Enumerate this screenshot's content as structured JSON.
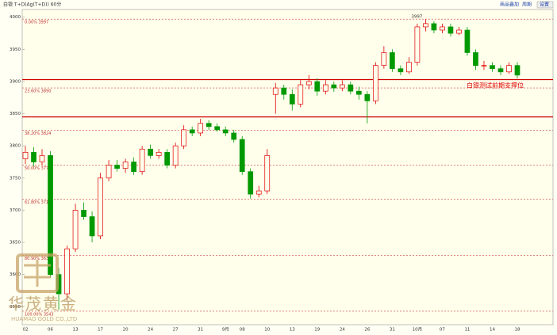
{
  "chart_data": {
    "type": "candlestick",
    "title": "白银 T+D(Ag(T+D)) 60分",
    "buttons": [
      "商品叠加",
      "周期",
      "设置"
    ],
    "annotation": "白银测试前期支撑位",
    "peak_label": "3997",
    "watermark": {
      "name": "华茂黄金",
      "sub": "HUAMAO GOLD CO.,LTD"
    },
    "up_color": "#e00000",
    "down_color": "#009900",
    "ylim": [
      3522,
      4012
    ],
    "yticks": [
      3550,
      3600,
      3650,
      3700,
      3750,
      3800,
      3850,
      3900,
      3950,
      4000
    ],
    "fib_levels": [
      {
        "value": 3997,
        "label": "0.00% 3997"
      },
      {
        "value": 3890,
        "label": "23.60% 3890"
      },
      {
        "value": 3824,
        "label": "38.20% 3824"
      },
      {
        "value": 3770,
        "label": "50.00% 3770"
      },
      {
        "value": 3717,
        "label": "61.80% 3717"
      },
      {
        "value": 3630,
        "label": "80.90% 3630"
      },
      {
        "value": 3543,
        "label": "100.00% 3543"
      }
    ],
    "support_lines": [
      3903,
      3845
    ],
    "categories": [
      "02",
      null,
      null,
      "06",
      null,
      null,
      "13",
      null,
      null,
      "17",
      null,
      null,
      "20",
      null,
      null,
      "24",
      null,
      null,
      "27",
      null,
      null,
      "31",
      null,
      null,
      "9月",
      null,
      "08",
      null,
      null,
      "10",
      null,
      null,
      "13",
      null,
      null,
      "19",
      null,
      null,
      "24",
      null,
      null,
      "26",
      null,
      null,
      "31",
      null,
      null,
      "10月",
      null,
      null,
      "07",
      null,
      null,
      "11",
      null,
      null,
      "14",
      null,
      null,
      "18"
    ],
    "open": [
      3780,
      3790,
      3775,
      3785,
      3600,
      3570,
      3640,
      3700,
      3690,
      3660,
      3750,
      3770,
      3765,
      3775,
      3760,
      3795,
      3785,
      3790,
      3770,
      3800,
      3825,
      3820,
      3835,
      3830,
      3825,
      3820,
      3810,
      3760,
      3725,
      3730,
      3880,
      3890,
      3880,
      3865,
      3895,
      3900,
      3885,
      3895,
      3890,
      3895,
      3885,
      3880,
      3870,
      3925,
      3945,
      3920,
      3915,
      3930,
      3985,
      3990,
      3980,
      3985,
      3975,
      3980,
      3945,
      3925,
      3925,
      3920,
      3915,
      3925
    ],
    "high": [
      3800,
      3798,
      3795,
      3792,
      3610,
      3645,
      3710,
      3712,
      3698,
      3758,
      3778,
      3778,
      3780,
      3782,
      3800,
      3802,
      3795,
      3795,
      3805,
      3832,
      3830,
      3842,
      3840,
      3835,
      3830,
      3825,
      3815,
      3765,
      3738,
      3795,
      3898,
      3895,
      3888,
      3902,
      3910,
      3905,
      3902,
      3900,
      3902,
      3900,
      3892,
      3885,
      3930,
      3955,
      3950,
      3925,
      3938,
      3990,
      3997,
      3994,
      3990,
      3990,
      3985,
      3985,
      3950,
      3932,
      3930,
      3925,
      3930,
      3930
    ],
    "low": [
      3772,
      3768,
      3770,
      3595,
      3545,
      3560,
      3635,
      3685,
      3650,
      3655,
      3745,
      3760,
      3758,
      3755,
      3755,
      3780,
      3780,
      3765,
      3765,
      3795,
      3815,
      3815,
      3825,
      3822,
      3815,
      3805,
      3755,
      3718,
      3720,
      3725,
      3850,
      3872,
      3855,
      3860,
      3888,
      3878,
      3880,
      3884,
      3885,
      3880,
      3872,
      3835,
      3865,
      3920,
      3915,
      3910,
      3912,
      3925,
      3978,
      3975,
      3975,
      3970,
      3972,
      3940,
      3918,
      3918,
      3915,
      3910,
      3912,
      3905
    ],
    "close": [
      3790,
      3775,
      3785,
      3600,
      3570,
      3640,
      3700,
      3690,
      3660,
      3750,
      3770,
      3765,
      3775,
      3760,
      3795,
      3785,
      3790,
      3770,
      3800,
      3825,
      3820,
      3835,
      3830,
      3825,
      3820,
      3810,
      3760,
      3725,
      3730,
      3785,
      3890,
      3880,
      3865,
      3895,
      3900,
      3885,
      3895,
      3890,
      3895,
      3885,
      3880,
      3870,
      3925,
      3945,
      3920,
      3915,
      3930,
      3985,
      3990,
      3980,
      3985,
      3975,
      3980,
      3945,
      3925,
      3925,
      3920,
      3915,
      3925,
      3910
    ]
  }
}
